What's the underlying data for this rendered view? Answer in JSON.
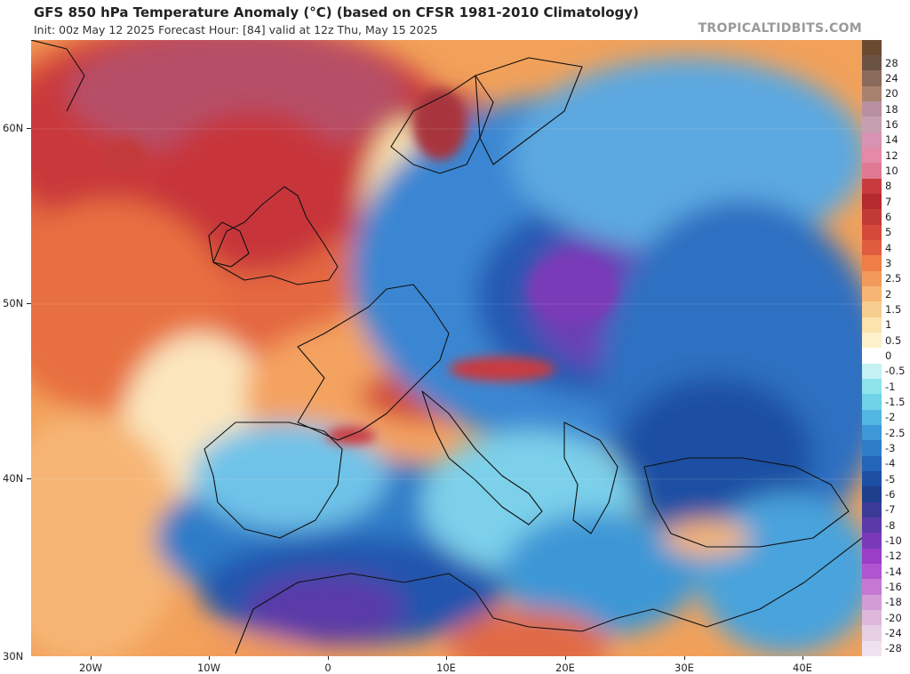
{
  "header": {
    "title": "GFS 850 hPa Temperature Anomaly (°C) (based on CFSR 1981-2010 Climatology)",
    "subtitle": "Init: 00z May 12 2025   Forecast Hour: [84]   valid at 12z Thu, May 15 2025",
    "brand": "TROPICALTIDBITS.COM"
  },
  "axes": {
    "lat_labels": [
      "60N",
      "50N",
      "40N",
      "30N"
    ],
    "lon_labels": [
      "20W",
      "10W",
      "0",
      "10E",
      "20E",
      "30E",
      "40E"
    ]
  },
  "colorbar": {
    "labels": [
      "28",
      "24",
      "20",
      "18",
      "16",
      "14",
      "12",
      "10",
      "8",
      "7",
      "6",
      "5",
      "4",
      "3",
      "2.5",
      "2",
      "1.5",
      "1",
      "0.5",
      "0",
      "-0.5",
      "-1",
      "-1.5",
      "-2",
      "-2.5",
      "-3",
      "-4",
      "-5",
      "-6",
      "-7",
      "-8",
      "-10",
      "-12",
      "-14",
      "-16",
      "-18",
      "-20",
      "-24",
      "-28"
    ],
    "colors": [
      "#6b5343",
      "#8a6a5a",
      "#a8826f",
      "#b890a0",
      "#c7a0b0",
      "#d693b3",
      "#e48aa8",
      "#e07a93",
      "#c93a3f",
      "#b52a2e",
      "#c23a34",
      "#d44a3a",
      "#e05c3e",
      "#ee7d48",
      "#f29a5c",
      "#f6b574",
      "#f8cd90",
      "#fbe3ad",
      "#fdf1cc",
      "#ffffff",
      "#c4f1f3",
      "#8fe3ea",
      "#6fd2e6",
      "#52b7e2",
      "#3e97d6",
      "#2f7cc8",
      "#2465b8",
      "#1d4fa3",
      "#1d3f8c",
      "#3b3a97",
      "#5a3aa8",
      "#7a3ab8",
      "#9a3ec6",
      "#b154cf",
      "#c478d4",
      "#d29cd6",
      "#ddb8dc",
      "#e6cfe2",
      "#efe2ee"
    ],
    "top_color": "#6b4a32"
  }
}
